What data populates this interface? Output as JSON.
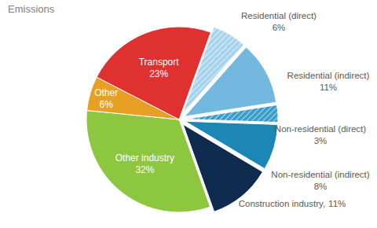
{
  "chart_data": {
    "type": "pie",
    "title": "Emissions",
    "categories": [
      "Residential (direct)",
      "Residential (indirect)",
      "Non-residential (direct)",
      "Non-residential (indirect)",
      "Construction industry,",
      "Other industry",
      "Other",
      "Transport"
    ],
    "values": [
      6,
      11,
      3,
      8,
      11,
      32,
      6,
      23
    ],
    "value_labels": [
      "6%",
      "11%",
      "3%",
      "8%",
      "11%",
      "32%",
      "6%",
      "23%"
    ],
    "colors": [
      "#a8d3ec",
      "#72b8df",
      "#3a9dca",
      "#1c86b5",
      "#0f2c4f",
      "#8dc63f",
      "#e8a024",
      "#e03131"
    ],
    "data_labels": true
  }
}
